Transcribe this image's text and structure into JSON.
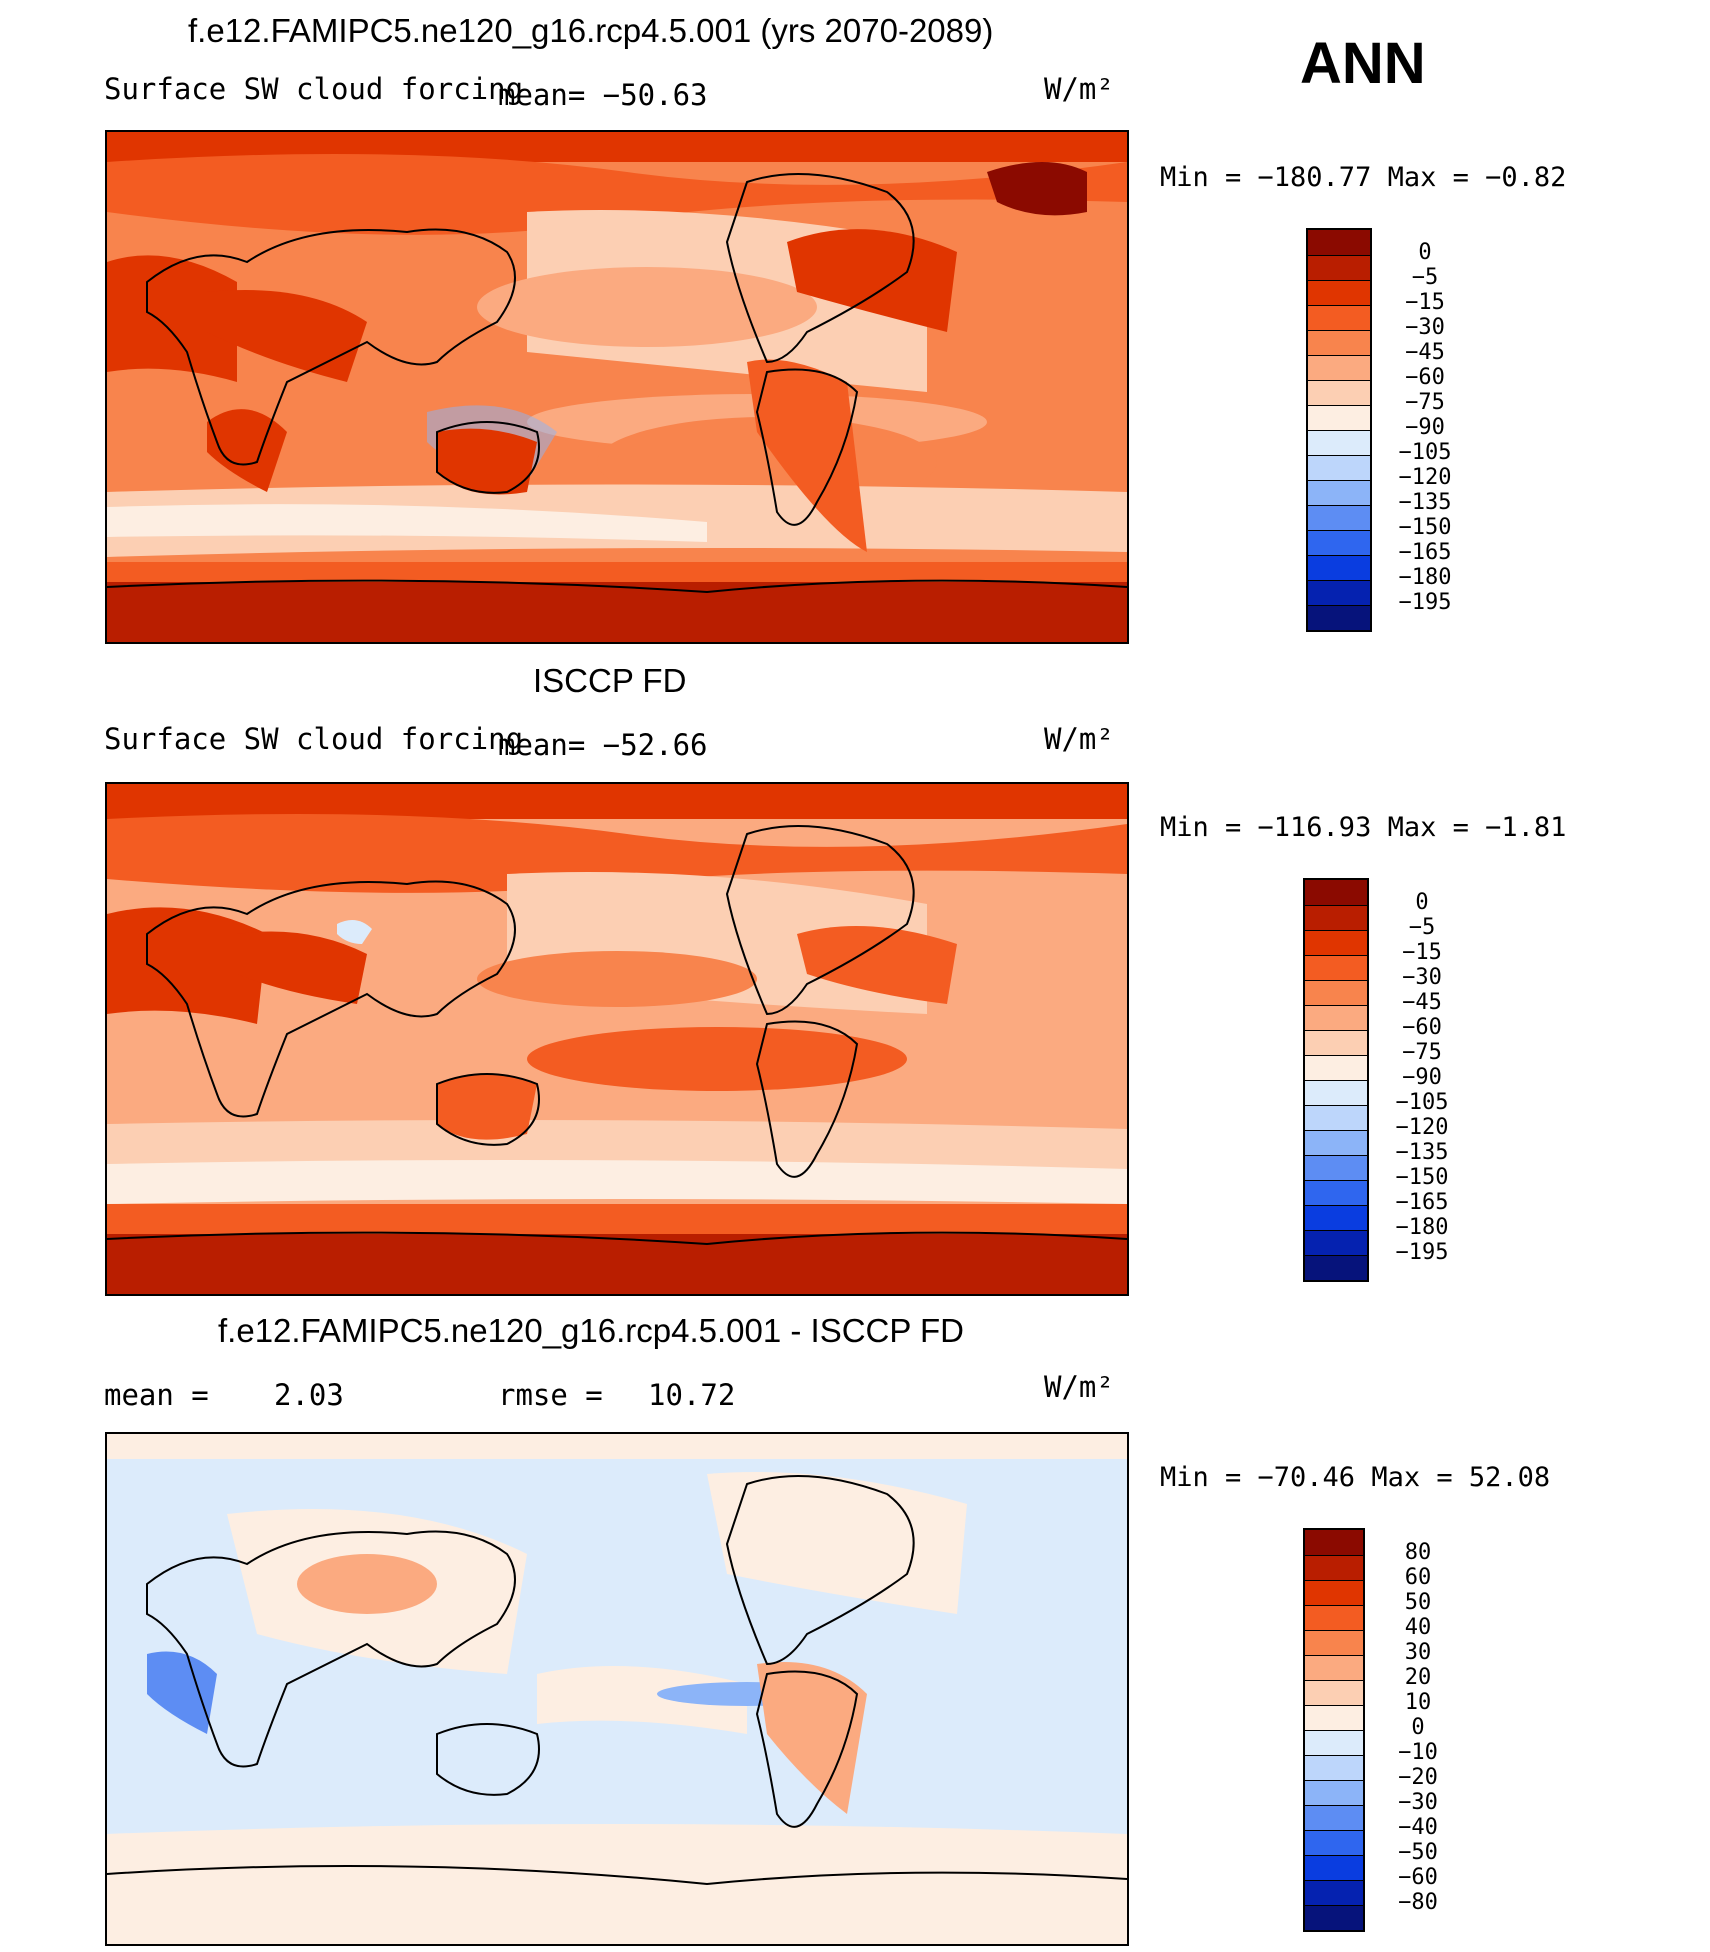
{
  "season": "ANN",
  "units": "W/m²",
  "chart_data": [
    {
      "type": "heatmap",
      "panel": "model",
      "title": "f.e12.FAMIPC5.ne120_g16.rcp4.5.001 (yrs 2070-2089)",
      "subtitle": "Surface SW cloud forcing",
      "mean_text": "mean= −50.63",
      "units_text": "W/m²",
      "min_max_text": "Min = −180.77 Max =  −0.82",
      "colorbar": {
        "levels": [
          "0",
          "−5",
          "−15",
          "−30",
          "−45",
          "−60",
          "−75",
          "−90",
          "−105",
          "−120",
          "−135",
          "−150",
          "−165",
          "−180",
          "−195"
        ],
        "colors": [
          "#8b0a00",
          "#b91e00",
          "#e03500",
          "#f35c22",
          "#f8844d",
          "#fbaa80",
          "#fccfb3",
          "#fdeee2",
          "#dcebfb",
          "#bdd6fb",
          "#8cb4f8",
          "#5d8df3",
          "#2f66ef",
          "#0a3de0",
          "#0522b0",
          "#06137b"
        ]
      }
    },
    {
      "type": "heatmap",
      "panel": "obs",
      "title": "ISCCP FD",
      "subtitle": "Surface SW cloud forcing",
      "mean_text": "mean= −52.66",
      "units_text": "W/m²",
      "min_max_text": "Min = −116.93 Max =  −1.81",
      "colorbar": {
        "levels": [
          "0",
          "−5",
          "−15",
          "−30",
          "−45",
          "−60",
          "−75",
          "−90",
          "−105",
          "−120",
          "−135",
          "−150",
          "−165",
          "−180",
          "−195"
        ],
        "colors": [
          "#8b0a00",
          "#b91e00",
          "#e03500",
          "#f35c22",
          "#f8844d",
          "#fbaa80",
          "#fccfb3",
          "#fdeee2",
          "#dcebfb",
          "#bdd6fb",
          "#8cb4f8",
          "#5d8df3",
          "#2f66ef",
          "#0a3de0",
          "#0522b0",
          "#06137b"
        ]
      }
    },
    {
      "type": "heatmap",
      "panel": "difference",
      "title": "f.e12.FAMIPC5.ne120_g16.rcp4.5.001 - ISCCP FD",
      "mean_label": "mean =",
      "mean_value": "2.03",
      "rmse_label": "rmse =",
      "rmse_value": "10.72",
      "units_text": "W/m²",
      "min_max_text": "Min = −70.46 Max =  52.08",
      "colorbar": {
        "levels": [
          "80",
          "60",
          "50",
          "40",
          "30",
          "20",
          "10",
          "0",
          "−10",
          "−20",
          "−30",
          "−40",
          "−50",
          "−60",
          "−80"
        ],
        "colors": [
          "#8b0a00",
          "#b91e00",
          "#e03500",
          "#f35c22",
          "#f8844d",
          "#fbaa80",
          "#fccfb3",
          "#fdeee2",
          "#dcebfb",
          "#bdd6fb",
          "#8cb4f8",
          "#5d8df3",
          "#2f66ef",
          "#0a3de0",
          "#0522b0",
          "#06137b"
        ]
      }
    }
  ]
}
